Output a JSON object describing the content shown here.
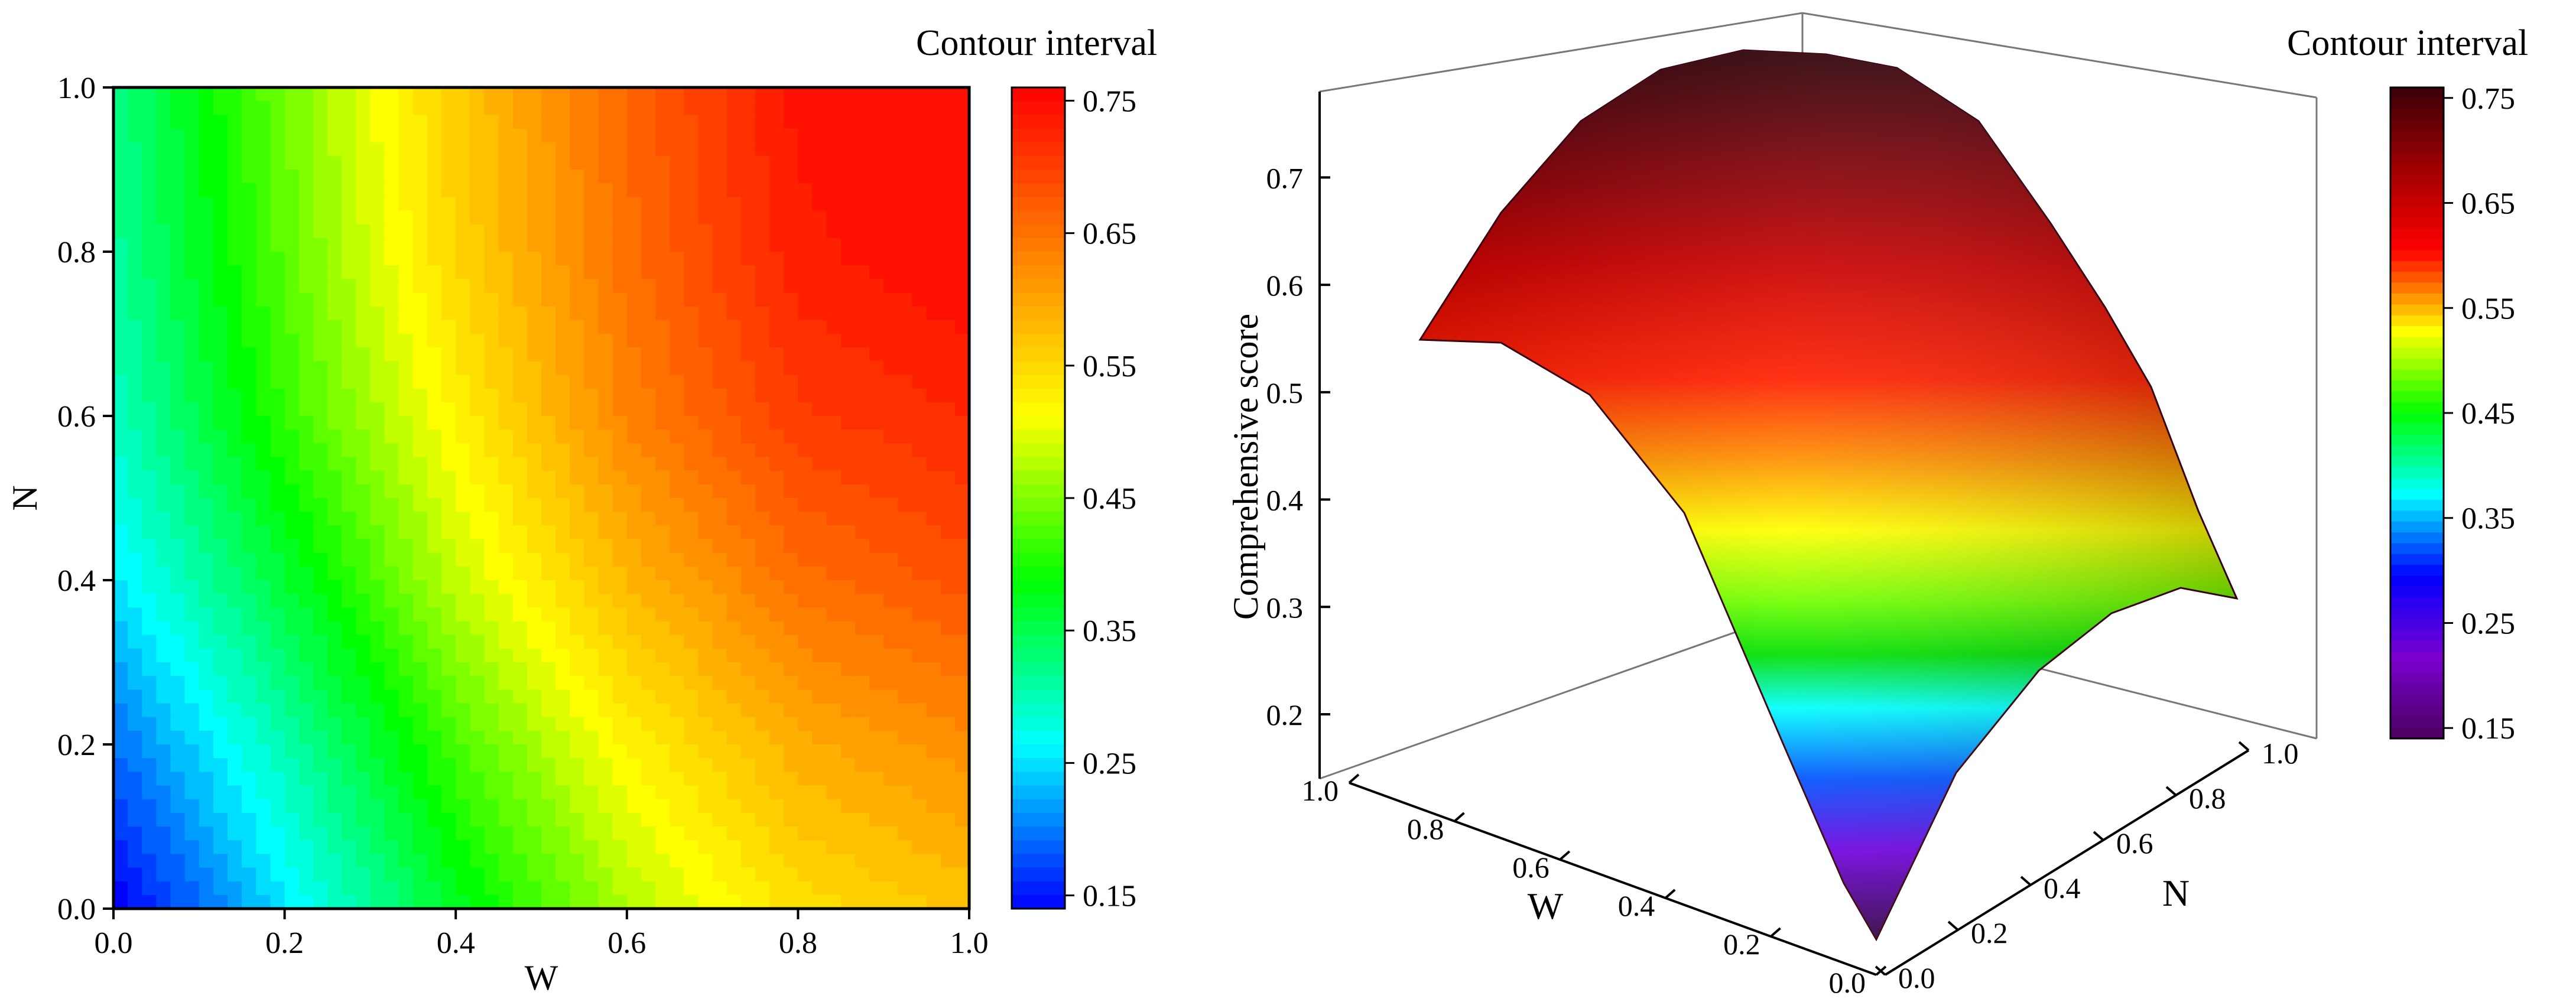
{
  "chart_data": [
    {
      "type": "heatmap",
      "subtype": "filled-contour",
      "xlabel": "W",
      "ylabel": "N",
      "xlim": [
        0,
        1
      ],
      "ylim": [
        0,
        1
      ],
      "xticks": [
        "0.0",
        "0.2",
        "0.4",
        "0.6",
        "0.8",
        "1.0"
      ],
      "yticks": [
        "0.0",
        "0.2",
        "0.4",
        "0.6",
        "0.8",
        "1.0"
      ],
      "colorbar": {
        "title": "Contour interval",
        "ticks": [
          "0.15",
          "0.25",
          "0.35",
          "0.45",
          "0.55",
          "0.65",
          "0.75"
        ],
        "range": [
          0.14,
          0.76
        ],
        "palette": [
          "#0000ff",
          "#00ffff",
          "#00ff00",
          "#ffff00",
          "#ff8000",
          "#ff0000"
        ],
        "placement": "right"
      },
      "grid_axis": [
        0,
        0.2,
        0.4,
        0.6,
        0.8,
        1.0
      ],
      "z": [
        [
          0.14,
          0.26,
          0.38,
          0.48,
          0.55,
          0.58
        ],
        [
          0.2,
          0.31,
          0.43,
          0.53,
          0.6,
          0.63
        ],
        [
          0.26,
          0.37,
          0.49,
          0.59,
          0.66,
          0.69
        ],
        [
          0.3,
          0.42,
          0.53,
          0.64,
          0.71,
          0.73
        ],
        [
          0.32,
          0.44,
          0.56,
          0.66,
          0.74,
          0.76
        ],
        [
          0.33,
          0.45,
          0.57,
          0.67,
          0.75,
          0.76
        ]
      ],
      "z_row_axis": "N",
      "z_col_axis": "W",
      "grid": false
    },
    {
      "type": "surface",
      "xlabel": "W",
      "ylabel": "N",
      "zlabel": "Comprehensive score",
      "xticks": [
        "0.0",
        "0.2",
        "0.4",
        "0.6",
        "0.8",
        "1.0"
      ],
      "yticks": [
        "0.0",
        "0.2",
        "0.4",
        "0.6",
        "0.8",
        "1.0"
      ],
      "zticks": [
        "0.2",
        "0.3",
        "0.4",
        "0.5",
        "0.6",
        "0.7"
      ],
      "zlim": [
        0.14,
        0.78
      ],
      "colorbar": {
        "title": "Contour interval",
        "ticks": [
          "0.15",
          "0.25",
          "0.35",
          "0.45",
          "0.55",
          "0.65",
          "0.75"
        ],
        "range": [
          0.14,
          0.76
        ],
        "palette": [
          "#4b0060",
          "#7a00d0",
          "#0000ff",
          "#00ffff",
          "#00ff00",
          "#ffff00",
          "#ff0000",
          "#a00000",
          "#3a0008"
        ],
        "placement": "right"
      },
      "same_data_as_left": true
    }
  ]
}
